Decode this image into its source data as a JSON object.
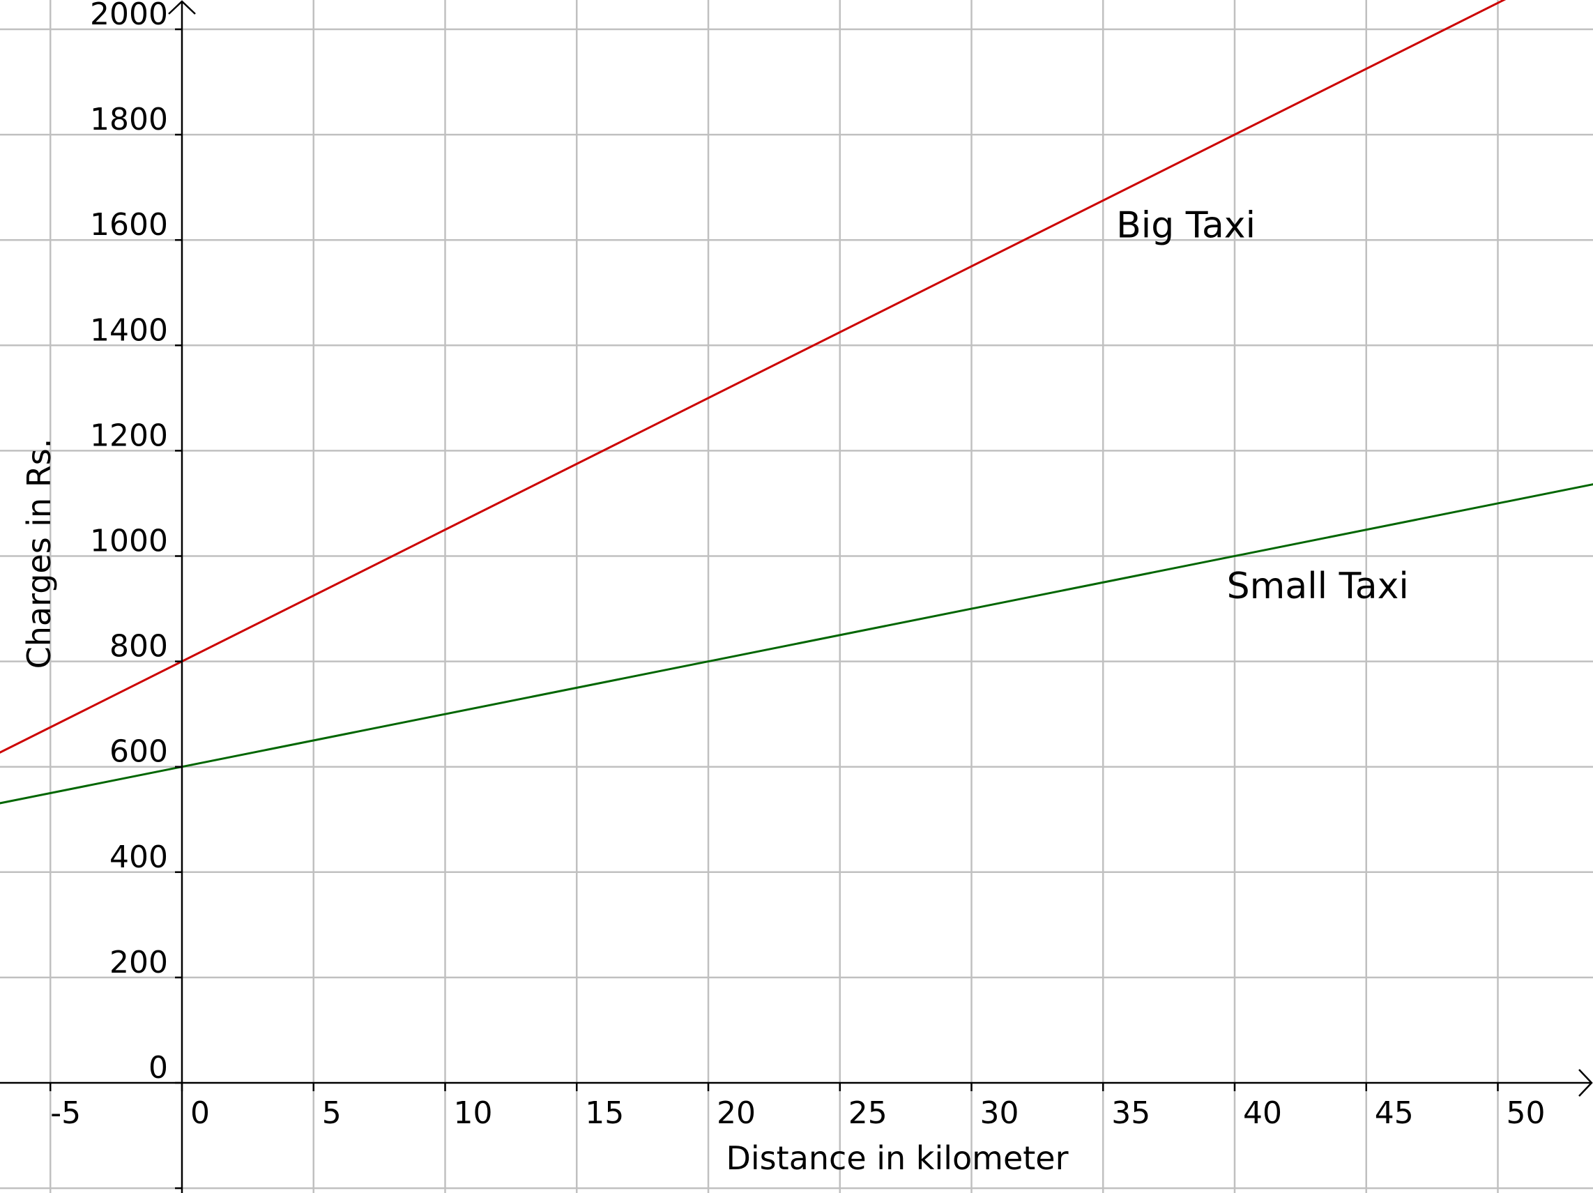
{
  "chart_data": {
    "type": "line",
    "title": "",
    "xlabel": "Distance in kilometer",
    "ylabel": "Charges in Rs.",
    "xlim": [
      -6.9,
      53.6
    ],
    "ylim": [
      -209,
      2055
    ],
    "grid": true,
    "x_ticks": [
      -5,
      0,
      5,
      10,
      15,
      20,
      25,
      30,
      35,
      40,
      45,
      50
    ],
    "y_ticks": [
      0,
      200,
      400,
      600,
      800,
      1000,
      1200,
      1400,
      1600,
      1800,
      2000
    ],
    "grid_y_extra": [
      -200
    ],
    "series": [
      {
        "name": "Big Taxi",
        "intercept": 800,
        "slope": 25,
        "color": "#cc0000",
        "label_at": [
          35.5,
          1605
        ]
      },
      {
        "name": "Small Taxi",
        "intercept": 600,
        "slope": 10,
        "color": "#006600",
        "label_at": [
          39.7,
          920
        ]
      }
    ],
    "colors": {
      "grid": "#c0c0c0",
      "axis": "#000000"
    }
  }
}
